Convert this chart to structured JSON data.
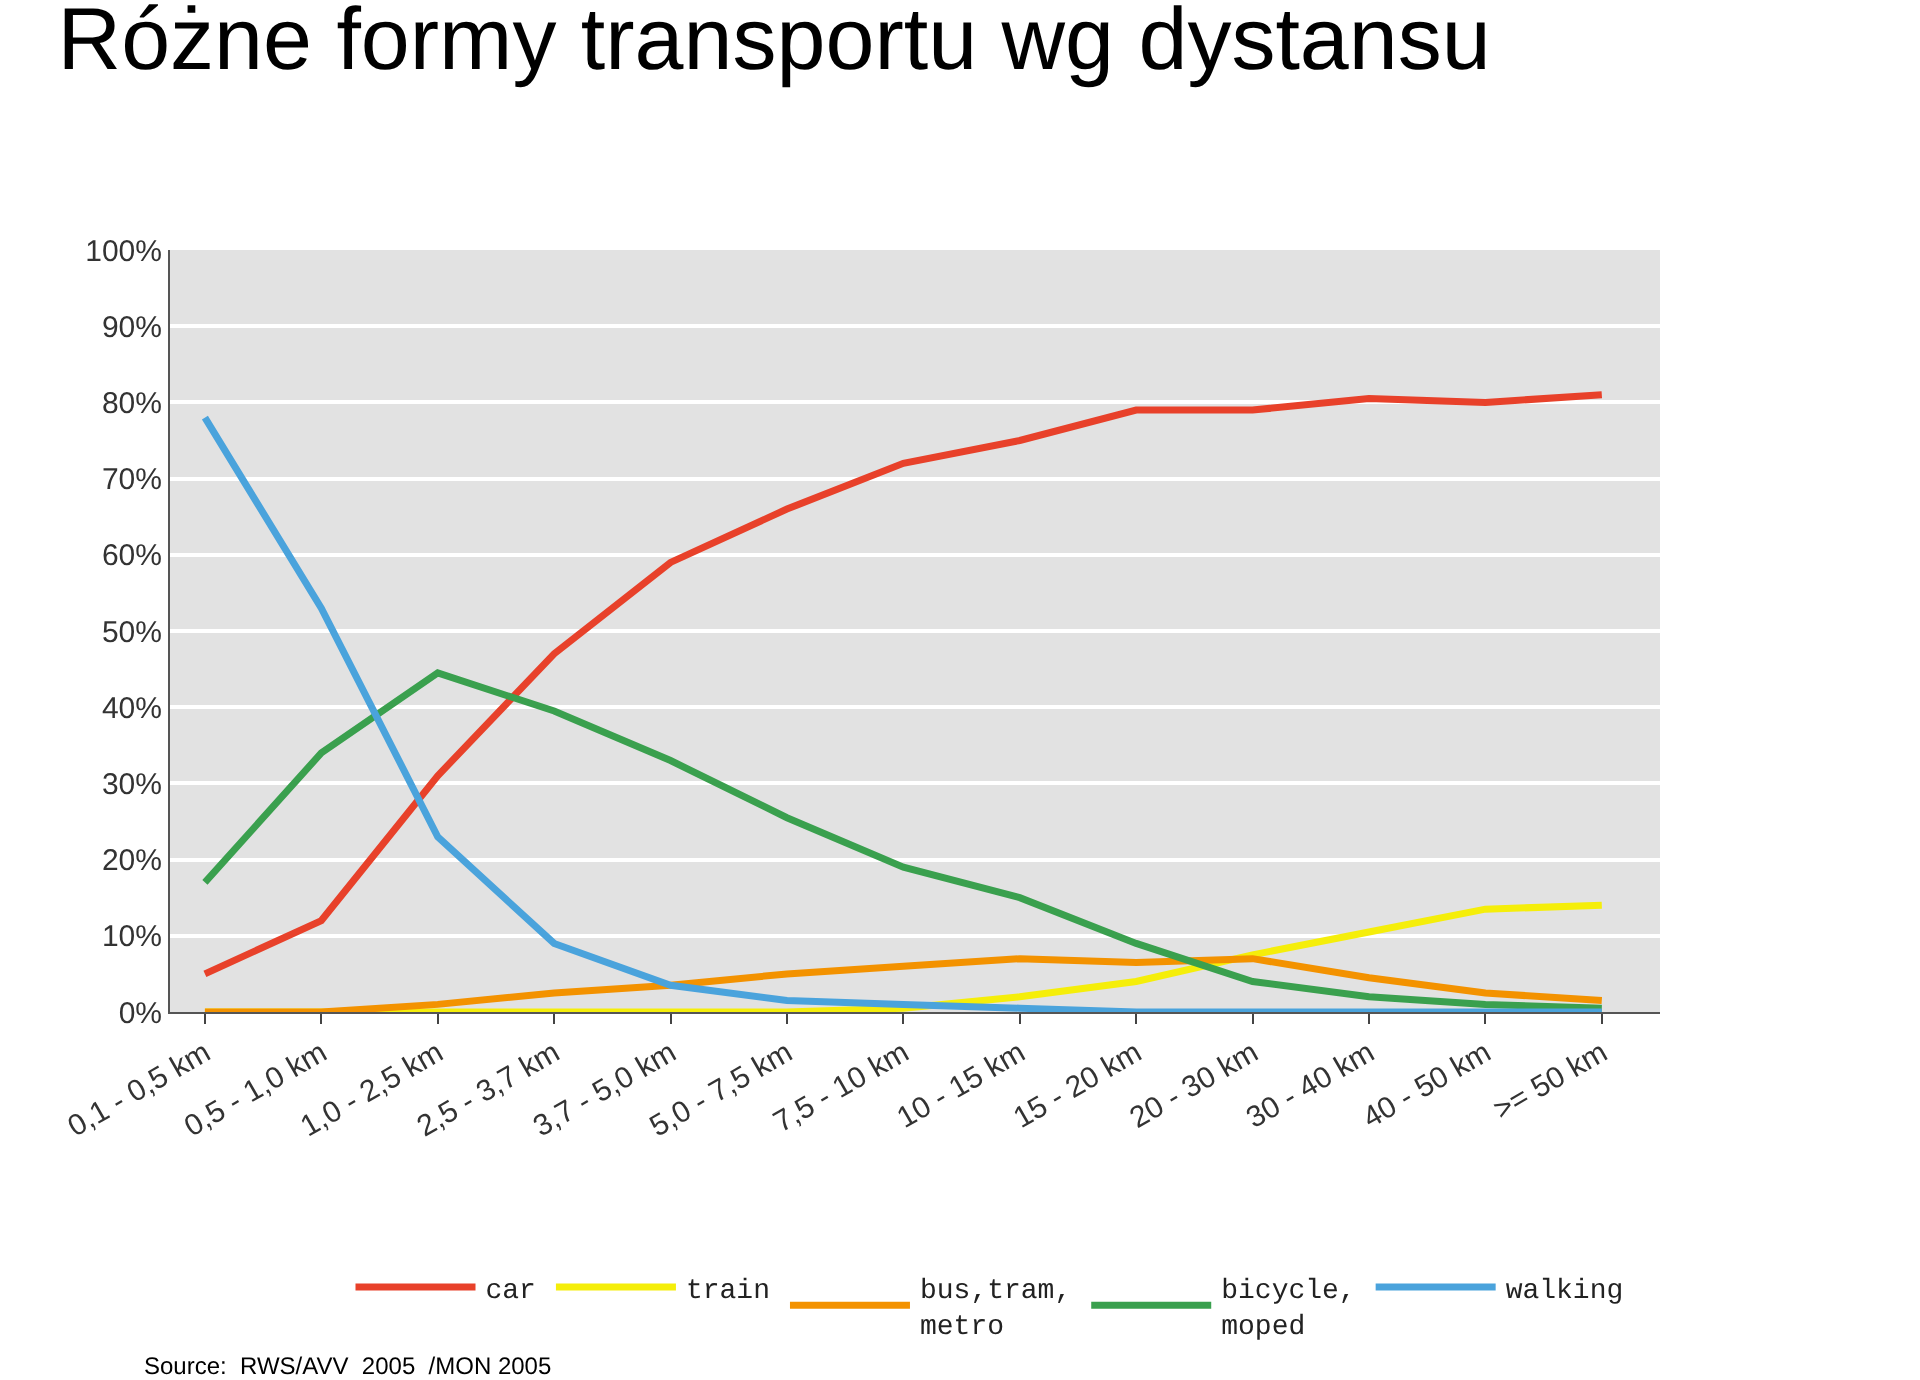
{
  "chart_data": {
    "type": "line",
    "title": "Różne formy transportu wg dystansu",
    "categories": [
      "0,1 - 0,5 km",
      "0,5 - 1,0 km",
      "1,0 - 2,5 km",
      "2,5 - 3,7 km",
      "3,7 - 5,0 km",
      "5,0 - 7,5 km",
      "7,5 - 10 km",
      "10 - 15 km",
      "15 - 20 km",
      "20 - 30 km",
      "30 - 40 km",
      "40 - 50 km",
      ">= 50 km"
    ],
    "series": [
      {
        "name": "car",
        "color": "#e8412a",
        "values": [
          5,
          12,
          31,
          47,
          59,
          66,
          72,
          75,
          79,
          79,
          80.5,
          80,
          81
        ]
      },
      {
        "name": "train",
        "color": "#f5ee0a",
        "values": [
          0,
          0,
          0,
          0,
          0,
          0,
          0.5,
          2,
          4,
          7.5,
          10.5,
          13.5,
          14
        ]
      },
      {
        "name": "bus,tram,\nmetro",
        "color": "#f39200",
        "values": [
          0,
          0,
          1,
          2.5,
          3.5,
          5,
          6,
          7,
          6.5,
          7,
          4.5,
          2.5,
          1.5
        ]
      },
      {
        "name": "bicycle,\nmoped",
        "color": "#3aa04e",
        "values": [
          17,
          34,
          44.5,
          39.5,
          33,
          25.5,
          19,
          15,
          9,
          4,
          2,
          1,
          0.5
        ]
      },
      {
        "name": "walking",
        "color": "#4aa3dc",
        "values": [
          78,
          53,
          23,
          9,
          3.5,
          1.5,
          1,
          0.5,
          0,
          0,
          0,
          0,
          0
        ]
      }
    ],
    "ylim": [
      0,
      100
    ],
    "yticks": [
      {
        "value": 0,
        "label": "0%"
      },
      {
        "value": 10,
        "label": "10%"
      },
      {
        "value": 20,
        "label": "20%"
      },
      {
        "value": 30,
        "label": "30%"
      },
      {
        "value": 40,
        "label": "40%"
      },
      {
        "value": 50,
        "label": "50%"
      },
      {
        "value": 60,
        "label": "60%"
      },
      {
        "value": 70,
        "label": "70%"
      },
      {
        "value": 80,
        "label": "80%"
      },
      {
        "value": 90,
        "label": "90%"
      },
      {
        "value": 100,
        "label": "100%"
      }
    ],
    "grid": "y",
    "legend": "bottom",
    "marker": "none",
    "line_style": "solid",
    "annotations": [
      "Source:  RWS/AVV  2005  /MON 2005"
    ]
  }
}
